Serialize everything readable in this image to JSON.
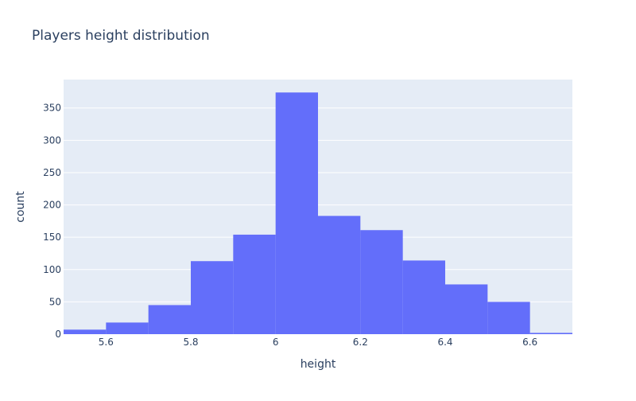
{
  "chart_data": {
    "type": "bar",
    "title": "Players height distribution",
    "xlabel": "height",
    "ylabel": "count",
    "bin_edges": [
      5.5,
      5.6,
      5.7,
      5.8,
      5.9,
      6.0,
      6.1,
      6.2,
      6.3,
      6.4,
      6.5,
      6.6,
      6.7
    ],
    "values": [
      7,
      18,
      45,
      113,
      154,
      374,
      183,
      161,
      114,
      77,
      50,
      2
    ],
    "xlim": [
      5.5,
      6.7
    ],
    "ylim": [
      0,
      394
    ],
    "x_ticks": [
      5.6,
      5.8,
      6.0,
      6.2,
      6.4,
      6.6
    ],
    "x_tick_labels": [
      "5.6",
      "5.8",
      "6",
      "6.2",
      "6.4",
      "6.6"
    ],
    "y_ticks": [
      0,
      50,
      100,
      150,
      200,
      250,
      300,
      350
    ],
    "y_tick_labels": [
      "0",
      "50",
      "100",
      "150",
      "200",
      "250",
      "300",
      "350"
    ],
    "grid": true,
    "colors": {
      "bar": "#636efa",
      "plot_bg": "#e5ecf6",
      "grid": "#ffffff",
      "text": "#2a3f5f"
    }
  }
}
